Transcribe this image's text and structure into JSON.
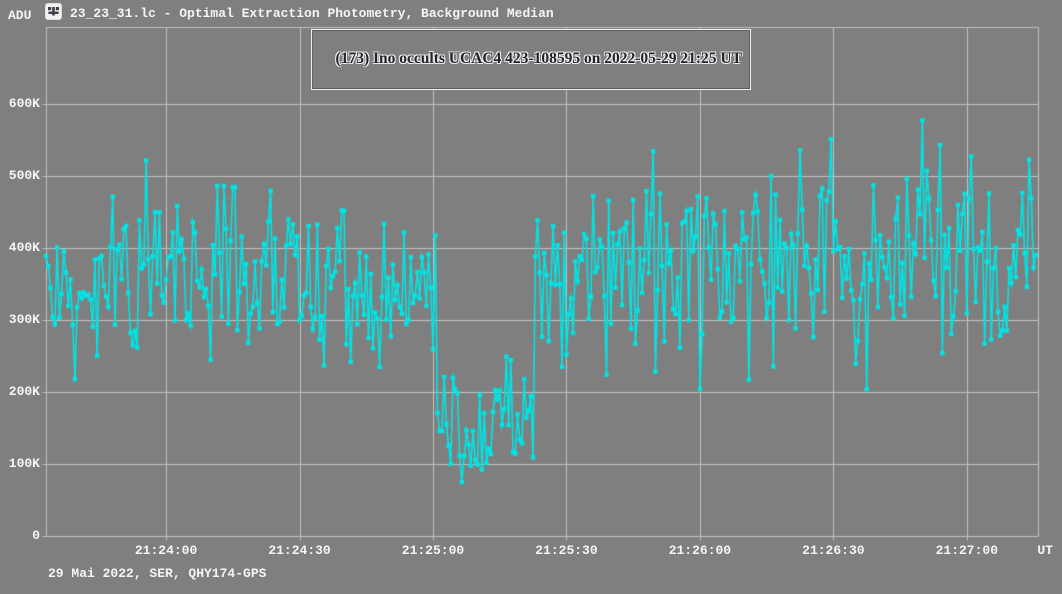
{
  "titlebar": {
    "unit_label": "ADU",
    "app_icon": "photometry-app-icon",
    "title": "23_23_31.lc - Optimal Extraction Photometry, Background Median"
  },
  "annotation_box": {
    "text": "(173) Ino occults UCAC4 423-108595 on 2022-05-29 21:25 UT"
  },
  "footer": {
    "note": "29 Mai 2022, SER, QHY174-GPS"
  },
  "colors": {
    "background": "#7f7f7f",
    "grid": "#c2c2c2",
    "data": "#00e5e5",
    "text": "#f5f5f5",
    "annotation_text": "#23232e"
  },
  "chart_data": {
    "type": "line",
    "title": "(173) Ino occults UCAC4 423-108595 on 2022-05-29 21:25 UT",
    "legend_position": "none",
    "x_axis": {
      "unit": "UT",
      "start": "21:23:33",
      "end": "21:27:16",
      "grid": true,
      "tick_labels": [
        "21:24:00",
        "21:24:30",
        "21:25:00",
        "21:25:30",
        "21:26:00",
        "21:26:30",
        "21:27:00"
      ]
    },
    "y_axis": {
      "unit": "ADU",
      "min": 0,
      "max": 707000,
      "tick_step": 100000,
      "grid": true,
      "tick_labels": [
        "0",
        "100K",
        "200K",
        "300K",
        "400K",
        "500K",
        "600K"
      ]
    },
    "series": [
      {
        "name": "target flux, optimal extraction, background median",
        "marker": "square",
        "cadence_s": 0.5,
        "seed": 29052022,
        "segments": [
          {
            "from": "21:23:33",
            "to": "21:23:48",
            "phase": "baseline",
            "mean": 330000,
            "sd": 48000,
            "min": 218000,
            "max": 470000
          },
          {
            "from": "21:23:48",
            "to": "21:24:41",
            "phase": "baseline",
            "mean": 368000,
            "sd": 68000,
            "min": 208000,
            "max": 592000
          },
          {
            "from": "21:24:41",
            "to": "21:25:01",
            "phase": "baseline",
            "mean": 348000,
            "sd": 58000,
            "min": 228000,
            "max": 560000
          },
          {
            "from": "21:25:01",
            "to": "21:25:23",
            "phase": "occultation",
            "mean": 165000,
            "sd": 40000,
            "min": 54000,
            "max": 305000
          },
          {
            "from": "21:25:23",
            "to": "21:26:13",
            "phase": "baseline",
            "mean": 372000,
            "sd": 68000,
            "min": 178000,
            "max": 600000
          },
          {
            "from": "21:26:13",
            "to": "21:27:16",
            "phase": "baseline",
            "mean": 383000,
            "sd": 74000,
            "min": 188000,
            "max": 603000
          }
        ]
      }
    ]
  }
}
